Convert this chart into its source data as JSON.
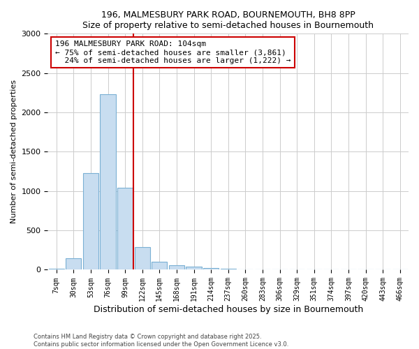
{
  "title": "196, MALMESBURY PARK ROAD, BOURNEMOUTH, BH8 8PP",
  "subtitle": "Size of property relative to semi-detached houses in Bournemouth",
  "xlabel": "Distribution of semi-detached houses by size in Bournemouth",
  "ylabel": "Number of semi-detached properties",
  "footnote": "Contains HM Land Registry data © Crown copyright and database right 2025.\nContains public sector information licensed under the Open Government Licence v3.0.",
  "bar_labels": [
    "7sqm",
    "30sqm",
    "53sqm",
    "76sqm",
    "99sqm",
    "122sqm",
    "145sqm",
    "168sqm",
    "191sqm",
    "214sqm",
    "237sqm",
    "260sqm",
    "283sqm",
    "306sqm",
    "329sqm",
    "351sqm",
    "374sqm",
    "397sqm",
    "420sqm",
    "443sqm",
    "466sqm"
  ],
  "bar_values": [
    10,
    150,
    1230,
    2230,
    1040,
    285,
    100,
    55,
    40,
    20,
    15,
    5,
    0,
    0,
    0,
    0,
    0,
    0,
    0,
    0,
    0
  ],
  "bar_color": "#c8ddf0",
  "bar_edge_color": "#7ab0d4",
  "property_label": "196 MALMESBURY PARK ROAD: 104sqm",
  "pct_smaller": 75,
  "n_smaller": 3861,
  "pct_larger": 24,
  "n_larger": 1222,
  "red_line_color": "#cc0000",
  "annotation_box_color": "#ffffff",
  "annotation_box_edge": "#cc0000",
  "ylim": [
    0,
    3000
  ],
  "yticks": [
    0,
    500,
    1000,
    1500,
    2000,
    2500,
    3000
  ],
  "grid_color": "#cccccc",
  "background_color": "#ffffff"
}
